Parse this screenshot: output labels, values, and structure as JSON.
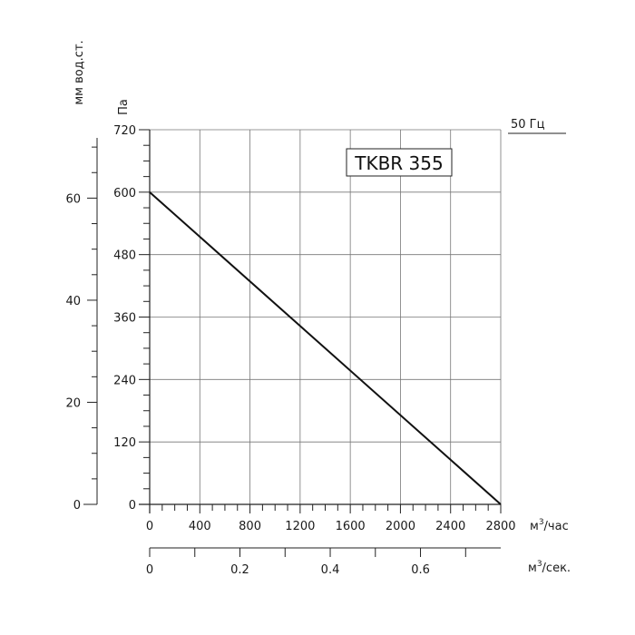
{
  "chart_data": {
    "type": "line",
    "model_label": "TKBR 355",
    "frequency_label": "50 Гц",
    "x_axis": {
      "unit": "м³/час",
      "unit_base": "м",
      "unit_sup": "3",
      "unit_tail": "/час",
      "range": [
        0,
        2800
      ],
      "ticks": [
        0,
        400,
        800,
        1200,
        1600,
        2000,
        2400,
        2800
      ]
    },
    "x2_axis": {
      "unit": "м³/сек.",
      "unit_base": "м",
      "unit_sup": "3",
      "unit_tail": "/сек.",
      "range": [
        0,
        0.7778
      ],
      "ticks": [
        "0",
        "0.2",
        "0.4",
        "0.6"
      ],
      "tick_values": [
        0,
        0.2,
        0.4,
        0.6
      ]
    },
    "y_axis": {
      "unit": "Па",
      "range": [
        0,
        720
      ],
      "ticks": [
        0,
        120,
        240,
        360,
        480,
        600,
        720
      ]
    },
    "y2_axis": {
      "unit": "мм вод.ст.",
      "range": [
        0,
        73.4
      ],
      "ticks": [
        0,
        20,
        40,
        60
      ]
    },
    "grid": true,
    "series": [
      {
        "x": [
          0,
          2800
        ],
        "y": [
          600,
          0
        ]
      }
    ]
  },
  "colors": {
    "curve": "#111111",
    "grid": "#777777",
    "axis": "#222222"
  }
}
